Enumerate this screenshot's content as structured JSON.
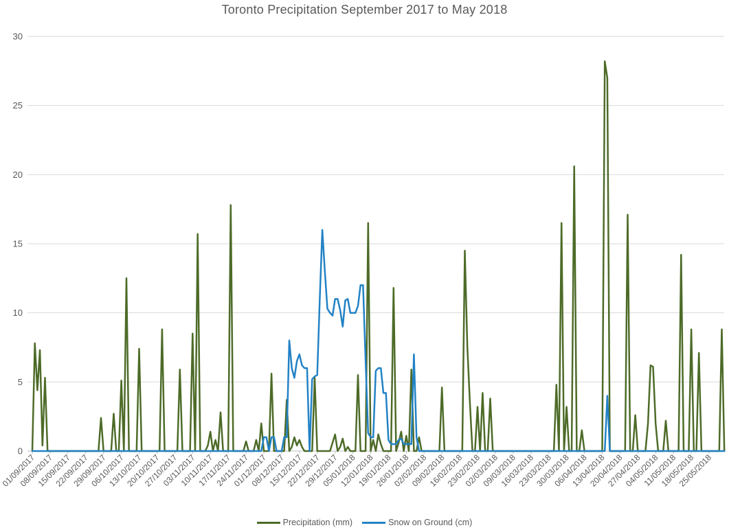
{
  "title": "Toronto Precipitation September 2017 to May 2018",
  "chart_data": {
    "type": "line",
    "title": "Toronto Precipitation September 2017 to May 2018",
    "xlabel": "",
    "ylabel": "",
    "ylim": [
      0,
      30
    ],
    "grid": "horizontal",
    "legend_position": "bottom",
    "y_ticks": [
      0,
      5,
      10,
      15,
      20,
      25,
      30
    ],
    "x_start_date": "01/09/2017",
    "x_tick_interval_days": 7,
    "x_tick_labels": [
      "01/09/2017",
      "08/09/2017",
      "15/09/2017",
      "22/09/2017",
      "29/09/2017",
      "06/10/2017",
      "13/10/2017",
      "20/10/2017",
      "27/10/2017",
      "03/11/2017",
      "10/11/2017",
      "17/11/2017",
      "24/11/2017",
      "01/12/2017",
      "08/12/2017",
      "15/12/2017",
      "22/12/2017",
      "29/12/2017",
      "05/01/2018",
      "12/01/2018",
      "19/01/2018",
      "26/01/2018",
      "02/02/2018",
      "09/02/2018",
      "16/02/2018",
      "23/02/2018",
      "02/03/2018",
      "09/03/2018",
      "16/03/2018",
      "23/03/2018",
      "30/03/2018",
      "06/04/2018",
      "13/04/2018",
      "20/04/2018",
      "27/04/2018",
      "04/05/2018",
      "11/05/2018",
      "18/05/2018",
      "25/05/2018"
    ],
    "colors": {
      "gridline": "#d9d9d9",
      "axis": "#bfbfbf",
      "text": "#595959"
    },
    "series": [
      {
        "name": "Precipitation (mm)",
        "color": "#4d6b28",
        "values": [
          0,
          7.8,
          4.4,
          7.3,
          0.4,
          5.3,
          0,
          0,
          0,
          0,
          0,
          0,
          0,
          0,
          0,
          0,
          0,
          0,
          0,
          0,
          0,
          0,
          0,
          0,
          0,
          0,
          0,
          2.4,
          0,
          0,
          0,
          0,
          2.7,
          0,
          0,
          5.1,
          0,
          12.5,
          0,
          0,
          0,
          0,
          7.4,
          0,
          0,
          0,
          0,
          0,
          0,
          0,
          0,
          8.8,
          0,
          0,
          0,
          0,
          0,
          0,
          5.9,
          0,
          0,
          0,
          0,
          8.5,
          0,
          15.7,
          0,
          0,
          0,
          0.4,
          1.4,
          0,
          0.8,
          0,
          2.8,
          0,
          0,
          0,
          17.8,
          0,
          0,
          0,
          0,
          0,
          0.7,
          0,
          0,
          0,
          0.8,
          0,
          2.0,
          0,
          0,
          0,
          5.6,
          0,
          0,
          0,
          0,
          0,
          3.7,
          0,
          0.3,
          1.0,
          0.4,
          0.8,
          0.3,
          0,
          0,
          0,
          0,
          5.3,
          0,
          0,
          0,
          0,
          0,
          0,
          0.6,
          1.2,
          0,
          0.3,
          0.9,
          0,
          0.3,
          0,
          0,
          0,
          5.5,
          0,
          0,
          0,
          16.5,
          0,
          0.8,
          0,
          1.2,
          0.5,
          0,
          0,
          0,
          0,
          11.8,
          0,
          0.6,
          1.4,
          0,
          1.1,
          0,
          5.9,
          0,
          0,
          1.0,
          0,
          0,
          0,
          0,
          0,
          0,
          0,
          0,
          4.6,
          0,
          0,
          0,
          0,
          0,
          0,
          0,
          0,
          14.5,
          7.5,
          3.5,
          0,
          0,
          3.2,
          0,
          4.2,
          0,
          0,
          3.8,
          0,
          0,
          0,
          0,
          0,
          0,
          0,
          0,
          0,
          0,
          0,
          0,
          0,
          0,
          0,
          0,
          0,
          0,
          0,
          0,
          0,
          0,
          0,
          0,
          0,
          4.8,
          0,
          16.5,
          0,
          3.2,
          0,
          0,
          20.6,
          0,
          0,
          1.5,
          0,
          0,
          0,
          0,
          0,
          0,
          0,
          0,
          28.2,
          27.0,
          0,
          0,
          0,
          0,
          0,
          0,
          0,
          17.1,
          0,
          0,
          2.6,
          0,
          0,
          0,
          0,
          2.0,
          6.2,
          6.1,
          2.0,
          0,
          0,
          0,
          2.2,
          0,
          0,
          0,
          0,
          0,
          14.2,
          0,
          0,
          0,
          8.8,
          0,
          0,
          7.1,
          0,
          0,
          0,
          0,
          0,
          0,
          0,
          0,
          8.8,
          0
        ]
      },
      {
        "name": "Snow on Ground (cm)",
        "color": "#2282c5",
        "values": [
          0,
          0,
          0,
          0,
          0,
          0,
          0,
          0,
          0,
          0,
          0,
          0,
          0,
          0,
          0,
          0,
          0,
          0,
          0,
          0,
          0,
          0,
          0,
          0,
          0,
          0,
          0,
          0,
          0,
          0,
          0,
          0,
          0,
          0,
          0,
          0,
          0,
          0,
          0,
          0,
          0,
          0,
          0,
          0,
          0,
          0,
          0,
          0,
          0,
          0,
          0,
          0,
          0,
          0,
          0,
          0,
          0,
          0,
          0,
          0,
          0,
          0,
          0,
          0,
          0,
          0,
          0,
          0,
          0,
          0,
          0,
          0,
          0,
          0,
          0,
          0,
          0,
          0,
          0,
          0,
          0,
          0,
          0,
          0,
          0,
          0,
          0,
          0,
          0,
          0,
          0,
          1,
          1,
          0,
          1,
          1,
          0,
          0,
          0,
          1,
          1,
          8,
          6,
          5.3,
          6.5,
          7,
          6.2,
          6,
          6,
          0,
          5.2,
          5.4,
          5.5,
          11,
          16,
          13,
          10.3,
          10,
          9.8,
          11,
          11,
          10.2,
          9,
          10.9,
          11,
          10,
          10,
          10,
          10.5,
          12,
          12,
          6.5,
          1.3,
          1,
          1,
          5.8,
          6,
          6,
          4.2,
          4.2,
          0.8,
          0.5,
          0.5,
          0.5,
          0.8,
          0.9,
          0.5,
          0.5,
          0.5,
          0.5,
          7,
          1,
          0,
          0,
          0,
          0,
          0,
          0,
          0,
          0,
          0,
          0,
          0,
          0,
          0,
          0,
          0,
          0,
          0,
          0,
          0,
          0,
          0,
          0,
          0,
          0,
          0,
          0,
          0,
          0,
          0,
          0,
          0,
          0,
          0,
          0,
          0,
          0,
          0,
          0,
          0,
          0,
          0,
          0,
          0,
          0,
          0,
          0,
          0,
          0,
          0,
          0,
          0,
          0,
          0,
          0,
          0,
          0,
          0,
          0,
          0,
          0,
          0,
          0,
          0,
          0,
          0,
          0,
          0,
          0,
          0,
          0,
          0,
          0,
          0,
          0,
          4,
          0,
          0,
          0,
          0,
          0,
          0,
          0,
          0,
          0,
          0,
          0,
          0,
          0,
          0,
          0,
          0,
          0,
          0,
          0,
          0,
          0,
          0,
          0,
          0,
          0,
          0,
          0,
          0,
          0,
          0,
          0,
          0,
          0,
          0,
          0,
          0,
          0,
          0,
          0,
          0,
          0,
          0,
          0,
          0,
          0,
          0
        ]
      }
    ]
  }
}
